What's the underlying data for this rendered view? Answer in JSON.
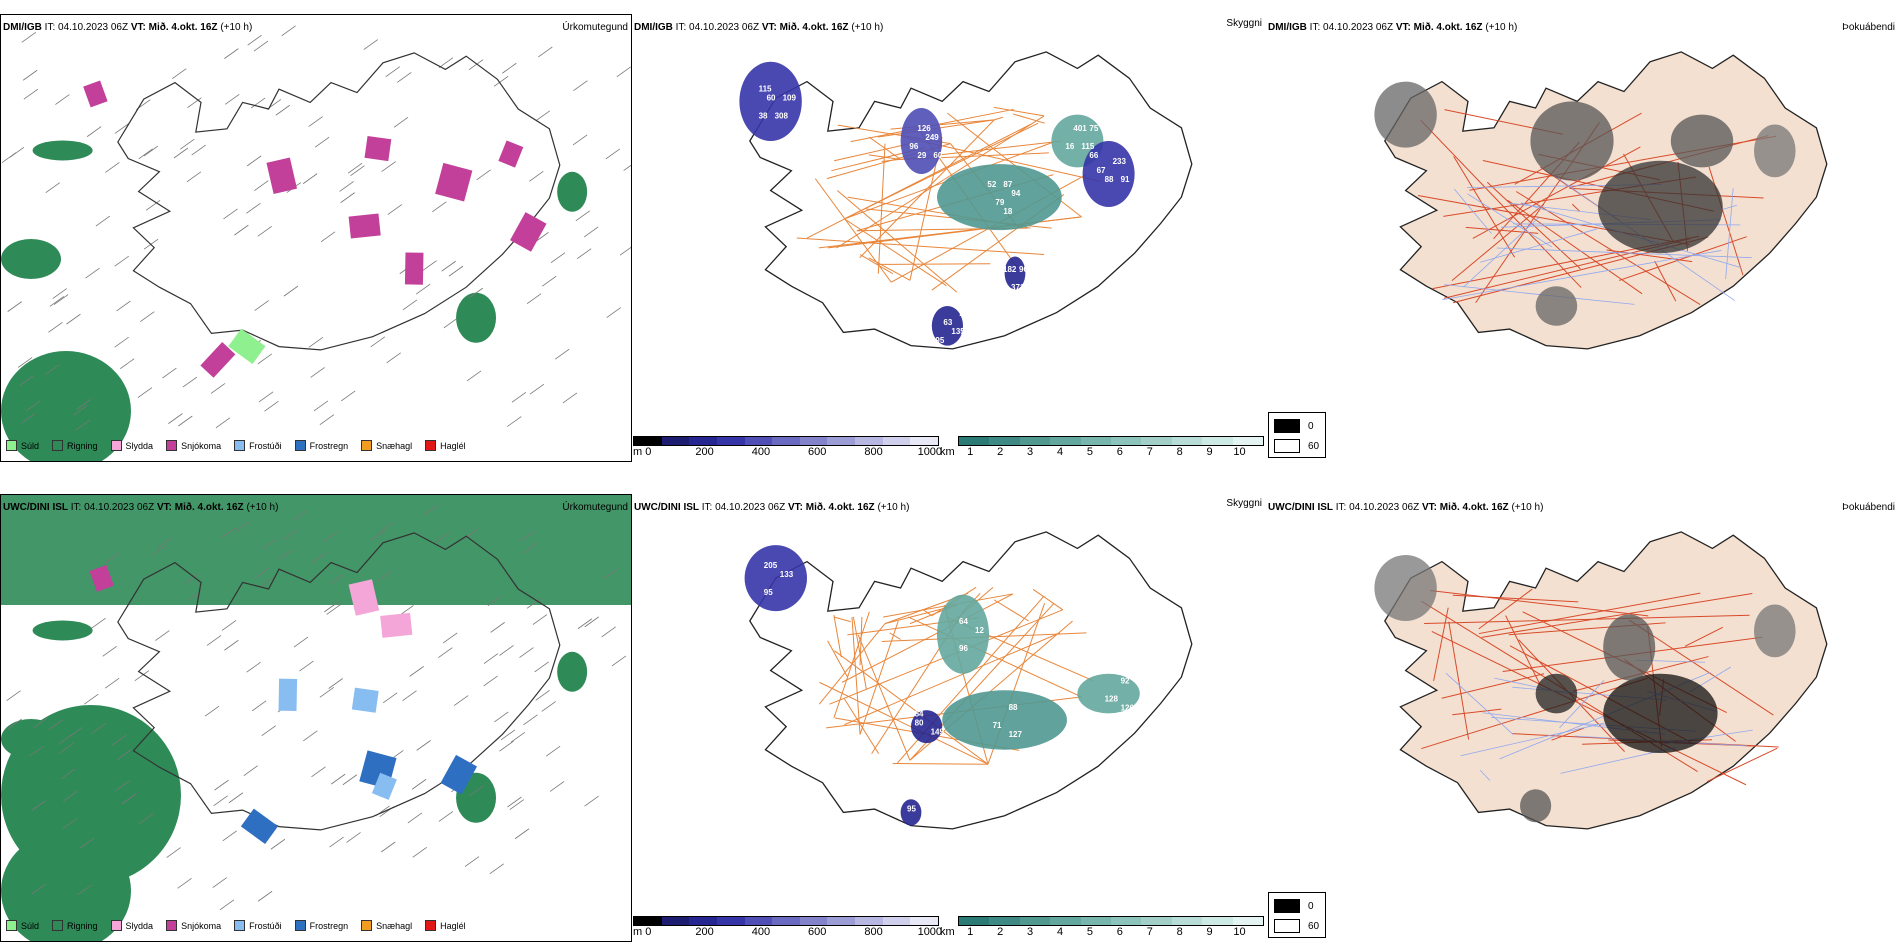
{
  "rows": [
    {
      "header": {
        "model": "DMI/IGB",
        "it_label": "IT:",
        "it_value": "04.10.2023 06Z",
        "vt_label": "VT:",
        "vt_value": "Mið. 4.okt. 16Z",
        "lead": "(+10 h)"
      },
      "precip_title": "Úrkomutegund",
      "cloud_title": "Skyggni",
      "fog_title": "Þokuábendi",
      "cloud_labels": [
        "115",
        "126",
        "87",
        "75",
        "67",
        "63",
        "96",
        "109",
        "96",
        "79",
        "115",
        "91",
        "95",
        "371",
        "308",
        "60",
        "52",
        "401",
        "233",
        "218",
        "182",
        "60",
        "249",
        "94",
        "16",
        "88",
        "135",
        "210",
        "38",
        "29",
        "18",
        "66"
      ]
    },
    {
      "header": {
        "model": "UWC/DINI ISL",
        "it_label": "IT:",
        "it_value": "04.10.2023 06Z",
        "vt_label": "VT:",
        "vt_value": "Mið. 4.okt. 16Z",
        "lead": "(+10 h)"
      },
      "precip_title": "Úrkomutegund",
      "cloud_title": "Skyggni",
      "fog_title": "Þokuábendi",
      "cloud_labels": [
        "205",
        "64",
        "88",
        "92",
        "80",
        "95",
        "133",
        "12",
        "71",
        "128",
        "149",
        "51",
        "95",
        "96",
        "127",
        "126",
        "54"
      ]
    }
  ],
  "precip_legend": [
    {
      "label": "Súld",
      "color": "#8ef08e"
    },
    {
      "label": "Rigning",
      "color": "#2e8b57"
    },
    {
      "label": "Slydda",
      "color": "#f4a6d8"
    },
    {
      "label": "Snjókoma",
      "color": "#c2409a"
    },
    {
      "label": "Frostúði",
      "color": "#87bdf0"
    },
    {
      "label": "Frostregn",
      "color": "#2f6fc2"
    },
    {
      "label": "Snæhagl",
      "color": "#f29d21"
    },
    {
      "label": "Haglél",
      "color": "#e01818"
    }
  ],
  "cloud_base_scale": {
    "unit": "m",
    "ticks": [
      "0",
      "200",
      "400",
      "600",
      "800",
      "1000"
    ],
    "colors": [
      "#000000",
      "#1c1c70",
      "#262690",
      "#3535a8",
      "#4f4fb5",
      "#6a6ac0",
      "#8383cb",
      "#9d9dd6",
      "#b7b7e1",
      "#d0d0ec",
      "#e8e8f6"
    ]
  },
  "visibility_scale": {
    "unit": "km",
    "ticks": [
      "1",
      "2",
      "3",
      "4",
      "5",
      "6",
      "7",
      "8",
      "9",
      "10"
    ],
    "colors": [
      "#2b7a74",
      "#3e8983",
      "#519891",
      "#64a79f",
      "#78b5ad",
      "#8cc3bb",
      "#a2d0c9",
      "#b8ddd6",
      "#ceeae4",
      "#e4f5f1"
    ]
  },
  "fog_legend": [
    {
      "label": "0",
      "color": "#000000"
    },
    {
      "label": "60",
      "color": "#ffffff"
    }
  ]
}
